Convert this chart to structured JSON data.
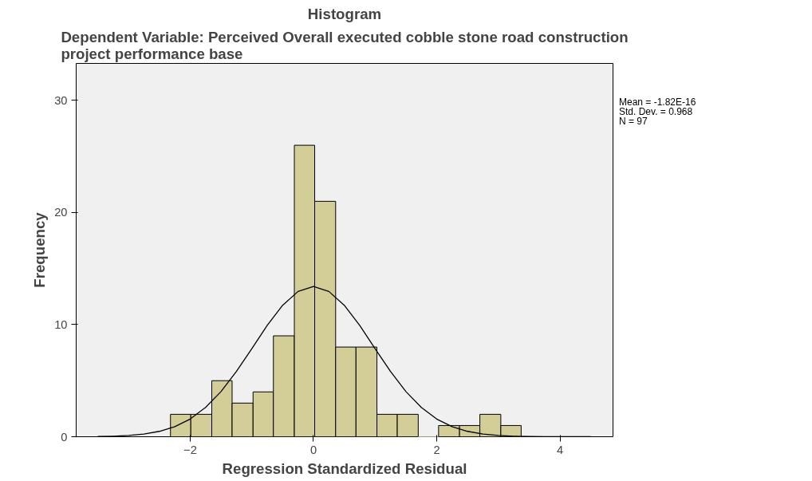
{
  "chart_data": {
    "type": "histogram",
    "title": "Histogram",
    "subtitle": "Dependent Variable: Perceived Overall executed cobble stone road construction project performance base",
    "xlabel": "Regression Standardized Residual",
    "ylabel": "Frequency",
    "bins": [
      -2.32,
      -1.99,
      -1.65,
      -1.32,
      -0.98,
      -0.65,
      -0.31,
      0.02,
      0.36,
      0.69,
      1.03,
      1.36,
      1.7,
      2.03,
      2.37,
      2.7,
      3.04,
      3.37
    ],
    "values": [
      2,
      2,
      5,
      3,
      4,
      9,
      26,
      21,
      8,
      8,
      2,
      2,
      0,
      1,
      1,
      2,
      1
    ],
    "color": "#d3ce97",
    "series": [
      {
        "type": "line",
        "color": "#000000",
        "x": [
          -3.5,
          -3.25,
          -3,
          -2.75,
          -2.5,
          -2.25,
          -2,
          -1.75,
          -1.5,
          -1.25,
          -1,
          -0.75,
          -0.5,
          -0.25,
          0,
          0.25,
          0.5,
          0.75,
          1,
          1.25,
          1.5,
          1.75,
          2,
          2.25,
          2.5,
          2.75,
          3,
          3.25,
          3.5,
          3.75,
          4,
          4.25,
          4.5
        ],
        "values": [
          0.02,
          0.05,
          0.11,
          0.24,
          0.48,
          0.9,
          1.58,
          2.62,
          4.03,
          5.82,
          7.85,
          9.93,
          11.73,
          12.96,
          13.4,
          12.96,
          11.73,
          9.93,
          7.85,
          5.82,
          4.03,
          2.62,
          1.58,
          0.9,
          0.48,
          0.24,
          0.11,
          0.05,
          0.02,
          0.01,
          0,
          0,
          0
        ]
      }
    ],
    "annotations": [
      "Mean = -1.82E-16",
      "Std. Dev. = 0.968",
      "N = 97"
    ],
    "xlim": [
      -3.85,
      4.86
    ],
    "ylim": [
      0,
      33.3
    ],
    "xticks": [
      -2,
      0,
      2,
      4
    ],
    "yticks": [
      0,
      10,
      20,
      30
    ],
    "grid": false
  }
}
